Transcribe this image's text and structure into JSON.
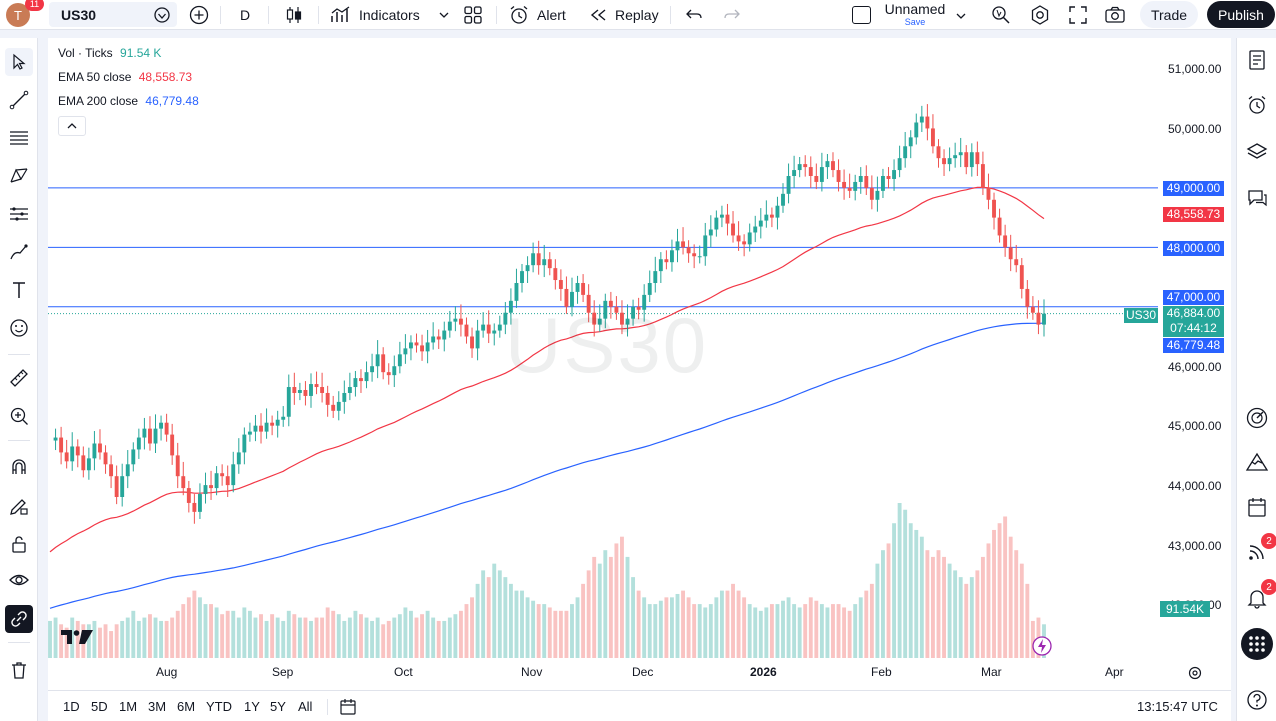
{
  "topbar": {
    "avatar_letter": "T",
    "avatar_badge": "11",
    "symbol": "US30",
    "interval": "D",
    "indicators_label": "Indicators",
    "alert_label": "Alert",
    "replay_label": "Replay",
    "layout_name": "Unnamed",
    "layout_save": "Save",
    "trade_label": "Trade",
    "publish_label": "Publish"
  },
  "legend": {
    "vol_label": "Vol · Ticks",
    "vol_value": "91.54 K",
    "ema50_label": "EMA 50 close",
    "ema50_value": "48,558.73",
    "ema200_label": "EMA 200 close",
    "ema200_value": "46,779.48"
  },
  "watermark": "US30",
  "colors": {
    "up": "#26a69a",
    "down": "#ef5350",
    "ema50": "#f23645",
    "ema200": "#2962ff",
    "hline": "#2962ff"
  },
  "price_axis": {
    "ticks": [
      "51,000.00",
      "50,000.00",
      "46,000.00",
      "45,000.00",
      "44,000.00",
      "43,000.00",
      "42,000.00"
    ],
    "hline_labels": [
      "49,000.00",
      "48,000.00",
      "47,000.00"
    ],
    "ema50_label": "48,558.73",
    "last_price": "46,884.00",
    "countdown": "07:44:12",
    "ema200_label": "46,779.48",
    "symbol_tag": "US30",
    "volume_label": "91.54K"
  },
  "time_axis": [
    "Aug",
    "Sep",
    "Oct",
    "Nov",
    "Dec",
    "2026",
    "Feb",
    "Mar",
    "Apr"
  ],
  "bottombar": {
    "ranges": [
      "1D",
      "5D",
      "1M",
      "3M",
      "6M",
      "YTD",
      "1Y",
      "5Y",
      "All"
    ],
    "clock": "13:15:47 UTC"
  },
  "right_badges": {
    "feed": "2",
    "alerts": "2"
  },
  "chart_data": {
    "type": "candlestick",
    "symbol": "US30",
    "interval": "D",
    "ylim": [
      41700,
      51500
    ],
    "hlines": [
      49000,
      48000,
      47000
    ],
    "last": 46884,
    "ema50_last": 48558.73,
    "ema200_last": 46779.48,
    "volume_last": "91.54K",
    "x_labels": [
      "Aug",
      "Sep",
      "Oct",
      "Nov",
      "Dec",
      "2026",
      "Feb",
      "Mar",
      "Apr"
    ],
    "closes": [
      44750,
      44800,
      44550,
      44400,
      44650,
      44500,
      44250,
      44450,
      44700,
      44550,
      44350,
      44150,
      43800,
      44150,
      44350,
      44600,
      44800,
      44950,
      44700,
      44950,
      45050,
      44850,
      44500,
      44150,
      43950,
      43700,
      43550,
      43850,
      44000,
      43950,
      44200,
      44150,
      44000,
      44350,
      44550,
      44850,
      44900,
      45000,
      44900,
      45050,
      45000,
      45100,
      45150,
      45650,
      45550,
      45600,
      45500,
      45700,
      45650,
      45550,
      45350,
      45250,
      45400,
      45550,
      45650,
      45800,
      45750,
      45900,
      46000,
      46200,
      45900,
      45850,
      46000,
      46200,
      46300,
      46400,
      46350,
      46250,
      46400,
      46500,
      46450,
      46600,
      46750,
      46800,
      46700,
      46500,
      46300,
      46600,
      46700,
      46550,
      46600,
      46700,
      46900,
      47100,
      47400,
      47600,
      47700,
      47900,
      47700,
      47800,
      47650,
      47450,
      47300,
      47000,
      47250,
      47400,
      47200,
      46900,
      46700,
      46800,
      47100,
      47000,
      46900,
      46700,
      46800,
      47000,
      46950,
      47200,
      47400,
      47600,
      47800,
      47750,
      47950,
      48100,
      48000,
      47900,
      47850,
      47850,
      48200,
      48300,
      48500,
      48550,
      48400,
      48200,
      48100,
      48050,
      48250,
      48350,
      48450,
      48550,
      48500,
      48700,
      48900,
      49200,
      49300,
      49400,
      49350,
      49200,
      49100,
      49350,
      49450,
      49300,
      49100,
      49000,
      48950,
      49100,
      49200,
      49000,
      48800,
      48950,
      49200,
      49150,
      49300,
      49500,
      49700,
      49850,
      50100,
      50200,
      50000,
      49700,
      49500,
      49400,
      49500,
      49550,
      49600,
      49350,
      49600,
      49400,
      49000,
      48800,
      48500,
      48200,
      48000,
      47800,
      47700,
      47300,
      47000,
      46900,
      46700,
      46884
    ],
    "volume_relative": [
      0.55,
      0.6,
      0.5,
      0.45,
      0.6,
      0.55,
      0.5,
      0.5,
      0.55,
      0.45,
      0.5,
      0.4,
      0.5,
      0.55,
      0.6,
      0.7,
      0.55,
      0.6,
      0.65,
      0.6,
      0.55,
      0.55,
      0.6,
      0.7,
      0.8,
      0.9,
      1.0,
      0.9,
      0.8,
      0.8,
      0.75,
      0.65,
      0.7,
      0.7,
      0.6,
      0.75,
      0.7,
      0.6,
      0.65,
      0.55,
      0.65,
      0.6,
      0.55,
      0.7,
      0.65,
      0.6,
      0.6,
      0.55,
      0.6,
      0.6,
      0.75,
      0.7,
      0.65,
      0.55,
      0.6,
      0.7,
      0.65,
      0.6,
      0.55,
      0.6,
      0.5,
      0.55,
      0.6,
      0.65,
      0.75,
      0.7,
      0.6,
      0.65,
      0.7,
      0.6,
      0.55,
      0.55,
      0.6,
      0.65,
      0.7,
      0.8,
      0.9,
      1.1,
      1.3,
      1.2,
      1.4,
      1.3,
      1.2,
      1.1,
      1.0,
      1.0,
      0.9,
      0.85,
      0.8,
      0.8,
      0.75,
      0.7,
      0.7,
      0.7,
      0.8,
      0.9,
      1.1,
      1.3,
      1.5,
      1.4,
      1.6,
      1.5,
      1.7,
      1.8,
      1.5,
      1.2,
      1.0,
      0.9,
      0.8,
      0.8,
      0.85,
      0.9,
      0.9,
      0.95,
      1.0,
      0.9,
      0.8,
      0.8,
      0.75,
      0.8,
      0.9,
      1.0,
      1.0,
      1.1,
      1.0,
      0.9,
      0.8,
      0.75,
      0.7,
      0.75,
      0.8,
      0.8,
      0.85,
      0.9,
      0.8,
      0.75,
      0.8,
      0.9,
      0.85,
      0.8,
      0.75,
      0.8,
      0.8,
      0.75,
      0.7,
      0.8,
      0.9,
      1.0,
      1.1,
      1.4,
      1.6,
      1.7,
      2.0,
      2.3,
      2.2,
      2.0,
      1.9,
      1.8,
      1.6,
      1.5,
      1.6,
      1.5,
      1.4,
      1.3,
      1.2,
      1.1,
      1.2,
      1.3,
      1.5,
      1.7,
      1.9,
      2.0,
      2.1,
      1.8,
      1.6,
      1.4,
      1.1
    ]
  }
}
